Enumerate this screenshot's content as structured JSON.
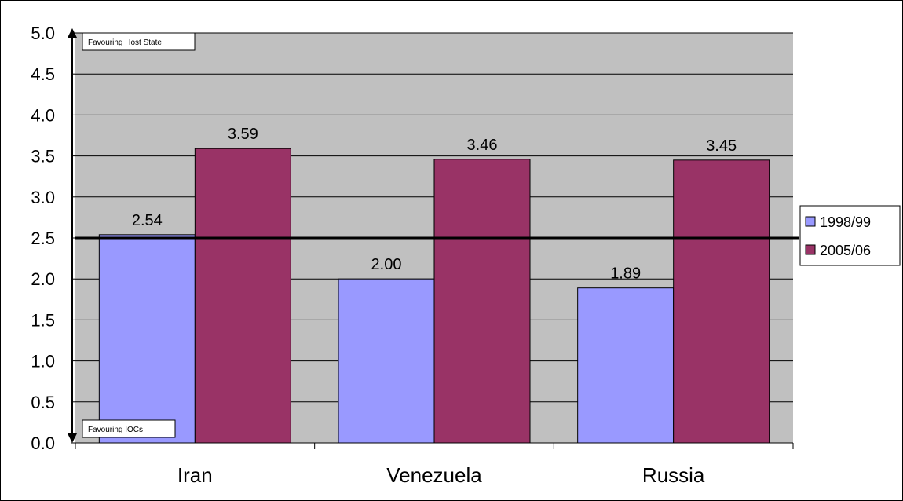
{
  "chart_data": {
    "type": "bar",
    "categories": [
      "Iran",
      "Venezuela",
      "Russia"
    ],
    "series": [
      {
        "name": "1998/99",
        "values": [
          2.54,
          2.0,
          1.89
        ],
        "color": "#9999ff"
      },
      {
        "name": "2005/06",
        "values": [
          3.59,
          3.46,
          3.45
        ],
        "color": "#993366"
      }
    ],
    "data_labels": [
      [
        "2.54",
        "2.00",
        "1.89"
      ],
      [
        "3.59",
        "3.46",
        "3.45"
      ]
    ],
    "ylim": [
      0,
      5
    ],
    "yticks": [
      "0.0",
      "0.5",
      "1.0",
      "1.5",
      "2.0",
      "2.5",
      "3.0",
      "3.5",
      "4.0",
      "4.5",
      "5.0"
    ],
    "reference_line": 2.5,
    "annotations": {
      "top": "Favouring Host State",
      "bottom": "Favouring IOCs"
    },
    "plot_background": "#c0c0c0",
    "grid": true,
    "legend_position": "right"
  }
}
